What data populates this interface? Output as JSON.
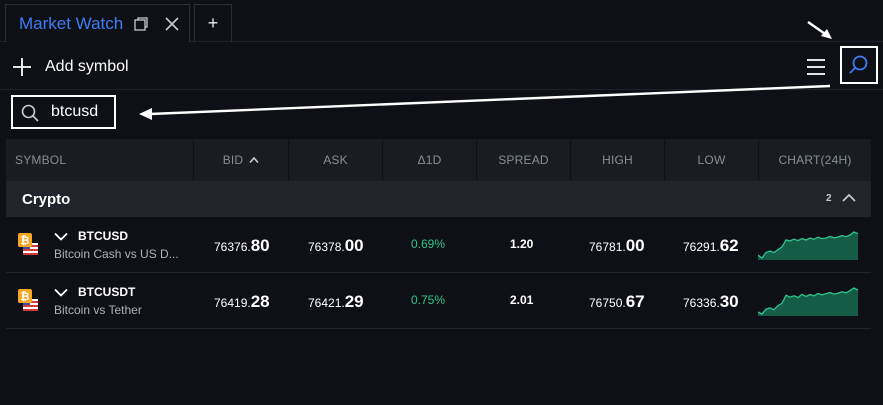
{
  "tabs": {
    "active_label": "Market Watch",
    "add_label": "+"
  },
  "toolbar": {
    "add_symbol_label": "Add symbol"
  },
  "search": {
    "value": "btcusd"
  },
  "table": {
    "columns": [
      "SYMBOL",
      "BID",
      "ASK",
      "Δ1D",
      "SPREAD",
      "HIGH",
      "LOW",
      "CHART(24H)"
    ],
    "sorted_column": "BID",
    "sort_direction": "ascending"
  },
  "group": {
    "label": "Crypto",
    "count": "2"
  },
  "rows": [
    {
      "symbol": "BTCUSD",
      "description": "Bitcoin Cash vs US D...",
      "bid_main": "76376.",
      "bid_big": "80",
      "ask_main": "76378.",
      "ask_big": "00",
      "change": "0.69%",
      "spread": "1.20",
      "high_main": "76781.",
      "high_big": "00",
      "low_main": "76291.",
      "low_big": "62",
      "sparkline": [
        1,
        0,
        2,
        2.5,
        2,
        3,
        4,
        6.5,
        6.2,
        6.8,
        6.3,
        7,
        6.5,
        7.2,
        6.8,
        7.5,
        7,
        7.2,
        7.8,
        7.3,
        7.6,
        8.1,
        7.7,
        8.3,
        9.4,
        8.8
      ]
    },
    {
      "symbol": "BTCUSDT",
      "description": "Bitcoin vs Tether",
      "bid_main": "76419.",
      "bid_big": "28",
      "ask_main": "76421.",
      "ask_big": "29",
      "change": "0.75%",
      "spread": "2.01",
      "high_main": "76750.",
      "high_big": "67",
      "low_main": "76336.",
      "low_big": "30",
      "sparkline": [
        1,
        0.3,
        2,
        2.4,
        1.8,
        3.2,
        4,
        6.8,
        6.1,
        6.6,
        6,
        7.1,
        6.4,
        7,
        6.6,
        7.4,
        6.9,
        7.3,
        7.7,
        7.2,
        7.5,
        8,
        7.6,
        8.4,
        9.3,
        8.6
      ]
    }
  ],
  "colors": {
    "accent": "#3d7cf5",
    "positive": "#2ec58b",
    "sparkline_line": "#2ec58b",
    "sparkline_fill": "#155c46",
    "background": "#0f1015",
    "header_bg": "#1a1c23",
    "group_bg": "#22242c"
  }
}
